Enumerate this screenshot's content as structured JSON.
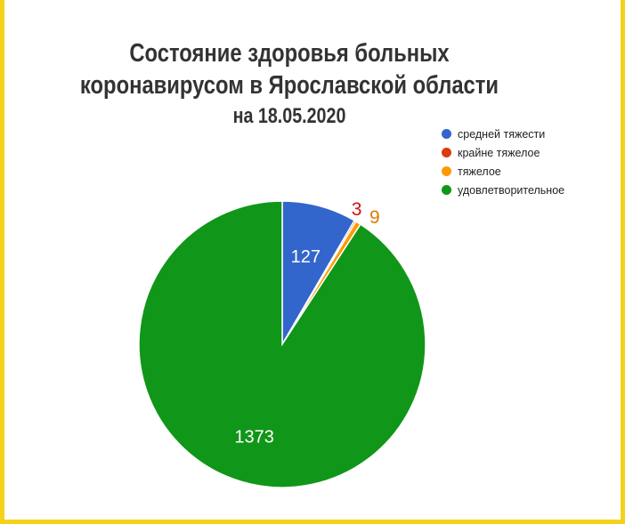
{
  "chart_data": {
    "type": "pie",
    "title": "Состояние здоровья больных коронавирусом в Ярославской области",
    "title_lines": [
      "Состояние здоровья больных",
      "коронавирусом в Ярославской области",
      "на 18.05.2020"
    ],
    "categories": [
      "средней тяжести",
      "крайне тяжелое",
      "тяжелое",
      "удовлетворительное"
    ],
    "values": [
      127,
      3,
      9,
      1373
    ],
    "value_labels": [
      "127",
      "3",
      "9",
      "1373"
    ],
    "colors": [
      "#3366cc",
      "#dc3912",
      "#ff9900",
      "#109618"
    ],
    "label_colors": [
      "#ffffff",
      "#cc1111",
      "#e07b00",
      "#ffffff"
    ],
    "legend_position": "top-right"
  }
}
